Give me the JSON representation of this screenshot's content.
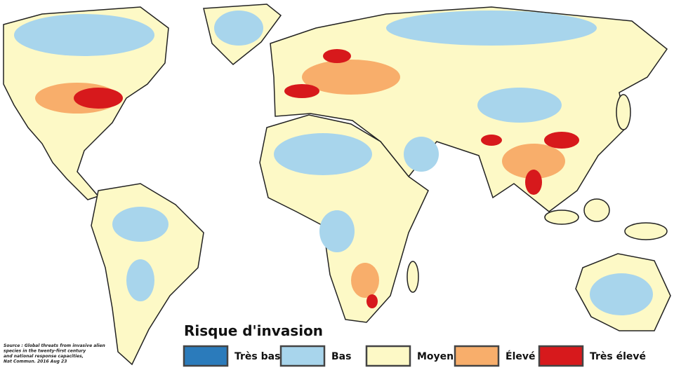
{
  "legend": {
    "title": "Risque d'invasion",
    "items": [
      {
        "label": "Très bas",
        "color": "#2b7bbb"
      },
      {
        "label": "Bas",
        "color": "#a8d5ec"
      },
      {
        "label": "Moyen",
        "color": "#fdf9c6"
      },
      {
        "label": "Élevé",
        "color": "#f8ae6b"
      },
      {
        "label": "Très élevé",
        "color": "#d7191c"
      }
    ]
  },
  "source": [
    "Source : Global threats from invasive alien",
    "species in the twenty-first century",
    "and national response capacities,",
    "Nat Commun. 2016 Aug 23"
  ]
}
